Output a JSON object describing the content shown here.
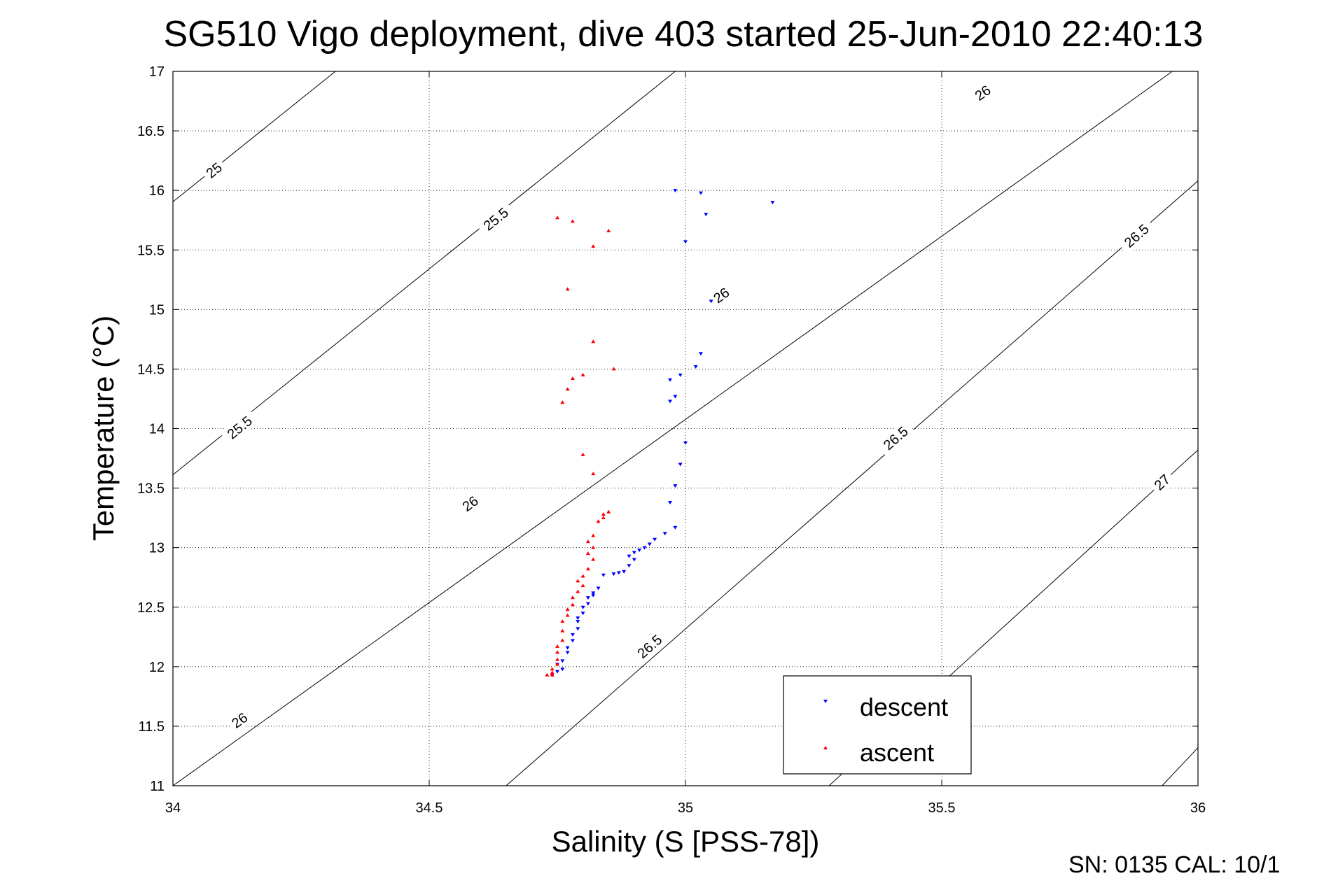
{
  "chart_data": {
    "type": "scatter",
    "title": "SG510 Vigo deployment, dive 403 started 25-Jun-2010 22:40:13",
    "xlabel": "Salinity (S [PSS-78])",
    "ylabel": "Temperature (°C)",
    "xlim": [
      34,
      36
    ],
    "ylim": [
      11,
      17
    ],
    "xticks": [
      "34",
      "34.5",
      "35",
      "35.5",
      "36"
    ],
    "yticks": [
      "11",
      "11.5",
      "12",
      "12.5",
      "13",
      "13.5",
      "14",
      "14.5",
      "15",
      "15.5",
      "16",
      "16.5",
      "17"
    ],
    "grid": true,
    "legend_position": "bottom-right",
    "footer": "SN: 0135  CAL: 10/1",
    "density_contours": [
      {
        "line": [
          [
            34.317,
            17.0
          ],
          [
            34.0,
            15.905
          ]
        ],
        "label": "25",
        "label_at": [
          34.08,
          16.17
        ]
      },
      {
        "line": [
          [
            34.98,
            17.0
          ],
          [
            34.0,
            13.612
          ]
        ],
        "label": "25.5",
        "label_at": [
          34.63,
          15.76
        ]
      },
      {
        "line": [
          [
            34.98,
            17.0
          ],
          [
            34.0,
            13.612
          ]
        ],
        "label": "25.5",
        "label_at": [
          34.13,
          14.01
        ]
      },
      {
        "line": [
          [
            35.95,
            17.0
          ],
          [
            34.0,
            11.0
          ]
        ],
        "label": "26",
        "label_at": [
          35.58,
          16.82
        ]
      },
      {
        "line": [
          [
            35.95,
            17.0
          ],
          [
            34.0,
            11.0
          ]
        ],
        "label": "26",
        "label_at": [
          35.07,
          15.12
        ]
      },
      {
        "line": [
          [
            35.95,
            17.0
          ],
          [
            34.0,
            11.0
          ]
        ],
        "label": "26",
        "label_at": [
          34.58,
          13.37
        ]
      },
      {
        "line": [
          [
            35.95,
            17.0
          ],
          [
            34.0,
            11.0
          ]
        ],
        "label": "26",
        "label_at": [
          34.13,
          11.55
        ]
      },
      {
        "line": [
          [
            36.0,
            16.08
          ],
          [
            34.65,
            11.0
          ]
        ],
        "label": "26.5",
        "label_at": [
          35.88,
          15.62
        ]
      },
      {
        "line": [
          [
            36.0,
            16.08
          ],
          [
            34.65,
            11.0
          ]
        ],
        "label": "26.5",
        "label_at": [
          35.41,
          13.92
        ]
      },
      {
        "line": [
          [
            36.0,
            16.08
          ],
          [
            34.65,
            11.0
          ]
        ],
        "label": "26.5",
        "label_at": [
          34.93,
          12.17
        ]
      },
      {
        "line": [
          [
            36.0,
            13.82
          ],
          [
            35.28,
            11.0
          ]
        ],
        "label": "27",
        "label_at": [
          35.93,
          13.55
        ]
      },
      {
        "line": [
          [
            36.0,
            11.32
          ],
          [
            35.93,
            11.0
          ]
        ],
        "label": "",
        "label_at": null
      }
    ],
    "series": [
      {
        "name": "descent",
        "color": "#0000ff",
        "marker": "triangle-down",
        "points": [
          [
            34.98,
            16.0
          ],
          [
            35.03,
            15.98
          ],
          [
            35.17,
            15.9
          ],
          [
            35.04,
            15.8
          ],
          [
            35.0,
            15.57
          ],
          [
            35.05,
            15.07
          ],
          [
            35.03,
            14.63
          ],
          [
            35.02,
            14.52
          ],
          [
            34.99,
            14.45
          ],
          [
            34.97,
            14.41
          ],
          [
            34.98,
            14.27
          ],
          [
            34.97,
            14.23
          ],
          [
            35.0,
            13.88
          ],
          [
            34.99,
            13.7
          ],
          [
            34.98,
            13.52
          ],
          [
            34.97,
            13.38
          ],
          [
            34.98,
            13.17
          ],
          [
            34.96,
            13.12
          ],
          [
            34.94,
            13.07
          ],
          [
            34.93,
            13.03
          ],
          [
            34.92,
            13.0
          ],
          [
            34.91,
            12.98
          ],
          [
            34.9,
            12.96
          ],
          [
            34.89,
            12.93
          ],
          [
            34.9,
            12.9
          ],
          [
            34.89,
            12.85
          ],
          [
            34.88,
            12.8
          ],
          [
            34.87,
            12.79
          ],
          [
            34.86,
            12.78
          ],
          [
            34.84,
            12.77
          ],
          [
            34.83,
            12.66
          ],
          [
            34.82,
            12.62
          ],
          [
            34.82,
            12.6
          ],
          [
            34.81,
            12.58
          ],
          [
            34.81,
            12.53
          ],
          [
            34.8,
            12.5
          ],
          [
            34.8,
            12.45
          ],
          [
            34.79,
            12.41
          ],
          [
            34.79,
            12.38
          ],
          [
            34.79,
            12.32
          ],
          [
            34.78,
            12.27
          ],
          [
            34.78,
            12.22
          ],
          [
            34.77,
            12.16
          ],
          [
            34.77,
            12.12
          ],
          [
            34.76,
            12.05
          ],
          [
            34.75,
            12.02
          ],
          [
            34.76,
            11.98
          ],
          [
            34.75,
            11.96
          ],
          [
            34.74,
            11.93
          ]
        ]
      },
      {
        "name": "ascent",
        "color": "#ff0000",
        "marker": "triangle-up",
        "points": [
          [
            34.75,
            15.77
          ],
          [
            34.78,
            15.74
          ],
          [
            34.85,
            15.66
          ],
          [
            34.82,
            15.53
          ],
          [
            34.77,
            15.17
          ],
          [
            34.82,
            14.73
          ],
          [
            34.86,
            14.5
          ],
          [
            34.8,
            14.45
          ],
          [
            34.78,
            14.42
          ],
          [
            34.77,
            14.33
          ],
          [
            34.76,
            14.22
          ],
          [
            34.8,
            13.78
          ],
          [
            34.82,
            13.62
          ],
          [
            34.84,
            13.28
          ],
          [
            34.85,
            13.3
          ],
          [
            34.84,
            13.25
          ],
          [
            34.83,
            13.22
          ],
          [
            34.82,
            13.1
          ],
          [
            34.81,
            13.05
          ],
          [
            34.82,
            13.0
          ],
          [
            34.81,
            12.95
          ],
          [
            34.82,
            12.9
          ],
          [
            34.81,
            12.82
          ],
          [
            34.8,
            12.76
          ],
          [
            34.79,
            12.72
          ],
          [
            34.8,
            12.68
          ],
          [
            34.79,
            12.63
          ],
          [
            34.78,
            12.58
          ],
          [
            34.78,
            12.52
          ],
          [
            34.77,
            12.48
          ],
          [
            34.77,
            12.43
          ],
          [
            34.76,
            12.38
          ],
          [
            34.76,
            12.3
          ],
          [
            34.76,
            12.22
          ],
          [
            34.75,
            12.17
          ],
          [
            34.75,
            12.12
          ],
          [
            34.75,
            12.06
          ],
          [
            34.75,
            12.02
          ],
          [
            34.74,
            11.98
          ],
          [
            34.74,
            11.95
          ],
          [
            34.74,
            11.93
          ],
          [
            34.73,
            11.93
          ]
        ]
      }
    ]
  }
}
